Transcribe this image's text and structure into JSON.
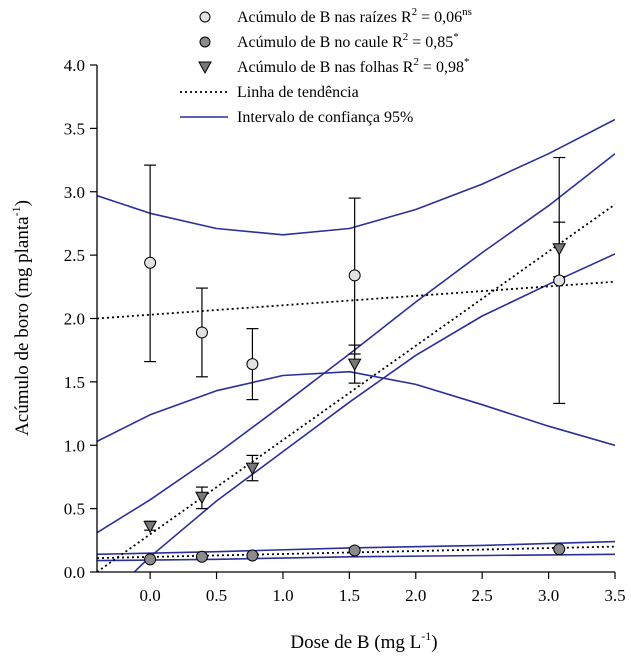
{
  "chart_data": {
    "type": "scatter",
    "title": "",
    "xlabel": "Dose de B (mg L",
    "xlabel_sup": "-1",
    "xlabel_suffix": ")",
    "ylabel": "Acúmulo de boro (mg planta",
    "ylabel_sup": "-1",
    "ylabel_suffix": ")",
    "xlim": [
      -0.4,
      3.5
    ],
    "ylim": [
      0.0,
      4.0
    ],
    "x_ticks": [
      0.0,
      0.5,
      1.0,
      1.5,
      2.0,
      2.5,
      3.0,
      3.5
    ],
    "x_tick_labels": [
      "0.0",
      "0.5",
      "1.0",
      "1.5",
      "2.0",
      "2.5",
      "3.0",
      "3.5"
    ],
    "y_ticks": [
      0.0,
      0.5,
      1.0,
      1.5,
      2.0,
      2.5,
      3.0,
      3.5,
      4.0
    ],
    "y_tick_labels": [
      "0.0",
      "0.5",
      "1.0",
      "1.5",
      "2.0",
      "2.5",
      "3.0",
      "3.5",
      "4.0"
    ],
    "grid": false,
    "legend_placement": "top",
    "legend": [
      {
        "marker": "circle-open",
        "text": "Acúmulo de B nas raízes R",
        "sup2": "2",
        "text2": " = 0,06",
        "sup3": "ns"
      },
      {
        "marker": "circle-filled",
        "text": "Acúmulo de B no caule R",
        "sup2": "2",
        "text2": " = 0,85",
        "sup3": "*"
      },
      {
        "marker": "triangle-down",
        "text": "Acúmulo de B nas folhas R",
        "sup2": "2",
        "text2": " = 0,98",
        "sup3": "*"
      },
      {
        "marker": "dotted-line",
        "text": "Linha de tendência",
        "sup2": "",
        "text2": "",
        "sup3": ""
      },
      {
        "marker": "solid-line",
        "text": "Intervalo de confiança 95%",
        "sup2": "",
        "text2": "",
        "sup3": ""
      }
    ],
    "series": [
      {
        "name": "Acúmulo de B nas raízes",
        "marker": "circle-open",
        "x": [
          0.0,
          0.39,
          0.77,
          1.54,
          3.08
        ],
        "y": [
          2.44,
          1.89,
          1.64,
          2.34,
          2.3
        ],
        "err_upper": [
          3.21,
          2.24,
          1.92,
          2.95,
          3.27
        ],
        "err_lower": [
          1.66,
          1.54,
          1.36,
          1.72,
          1.33
        ]
      },
      {
        "name": "Acúmulo de B no caule",
        "marker": "circle-filled",
        "x": [
          0.0,
          0.39,
          0.77,
          1.54,
          3.08
        ],
        "y": [
          0.1,
          0.12,
          0.13,
          0.17,
          0.18
        ],
        "err_upper": [
          0.1,
          0.12,
          0.13,
          0.17,
          0.18
        ],
        "err_lower": [
          0.1,
          0.12,
          0.13,
          0.17,
          0.18
        ]
      },
      {
        "name": "Acúmulo de B nas folhas",
        "marker": "triangle-down",
        "x": [
          0.0,
          0.39,
          0.77,
          1.54,
          3.08
        ],
        "y": [
          0.36,
          0.59,
          0.82,
          1.64,
          2.55
        ],
        "err_upper": [
          0.4,
          0.67,
          0.92,
          1.79,
          2.76
        ],
        "err_lower": [
          0.33,
          0.5,
          0.72,
          1.49,
          2.33
        ]
      }
    ],
    "trend_lines": [
      {
        "name": "Tendência raízes",
        "x": [
          -0.4,
          3.5
        ],
        "y": [
          2.0,
          2.29
        ]
      },
      {
        "name": "Tendência caule",
        "x": [
          -0.4,
          3.5
        ],
        "y": [
          0.11,
          0.2
        ]
      },
      {
        "name": "Tendência folhas",
        "x": [
          -0.4,
          3.5
        ],
        "y": [
          0.0,
          2.9
        ]
      }
    ],
    "confidence_bands": [
      {
        "name": "IC raízes superior",
        "x": [
          -0.4,
          0.0,
          0.5,
          1.0,
          1.5,
          2.0,
          2.5,
          3.0,
          3.5
        ],
        "y": [
          2.97,
          2.83,
          2.71,
          2.66,
          2.71,
          2.86,
          3.06,
          3.3,
          3.57
        ]
      },
      {
        "name": "IC raízes inferior",
        "x": [
          -0.4,
          0.0,
          0.5,
          1.0,
          1.5,
          2.0,
          2.5,
          3.0,
          3.5
        ],
        "y": [
          1.03,
          1.24,
          1.43,
          1.55,
          1.58,
          1.48,
          1.32,
          1.15,
          1.0
        ]
      },
      {
        "name": "IC folhas superior",
        "x": [
          -0.4,
          0.0,
          0.5,
          1.0,
          1.5,
          2.0,
          2.5,
          3.0,
          3.5
        ],
        "y": [
          0.31,
          0.57,
          0.93,
          1.32,
          1.72,
          2.13,
          2.52,
          2.89,
          3.3
        ]
      },
      {
        "name": "IC folhas inferior",
        "x": [
          -0.4,
          -0.1,
          0.0,
          0.5,
          1.0,
          1.5,
          2.0,
          2.5,
          3.0,
          3.5
        ],
        "y": [
          -0.32,
          0.02,
          0.12,
          0.56,
          0.95,
          1.34,
          1.71,
          2.02,
          2.27,
          2.51
        ]
      },
      {
        "name": "IC caule superior",
        "x": [
          -0.4,
          0.5,
          1.5,
          2.5,
          3.5
        ],
        "y": [
          0.14,
          0.16,
          0.19,
          0.21,
          0.24
        ]
      },
      {
        "name": "IC caule inferior",
        "x": [
          -0.4,
          0.5,
          1.5,
          2.5,
          3.5
        ],
        "y": [
          0.09,
          0.1,
          0.12,
          0.13,
          0.14
        ]
      }
    ],
    "colors": {
      "confidence_band": "#2b2f9a",
      "trend_line": "#000000",
      "marker_open_fill": "#e2e2e2",
      "marker_filled": "#8a8a8a",
      "marker_triangle": "#777777",
      "axis": "#000000"
    }
  }
}
